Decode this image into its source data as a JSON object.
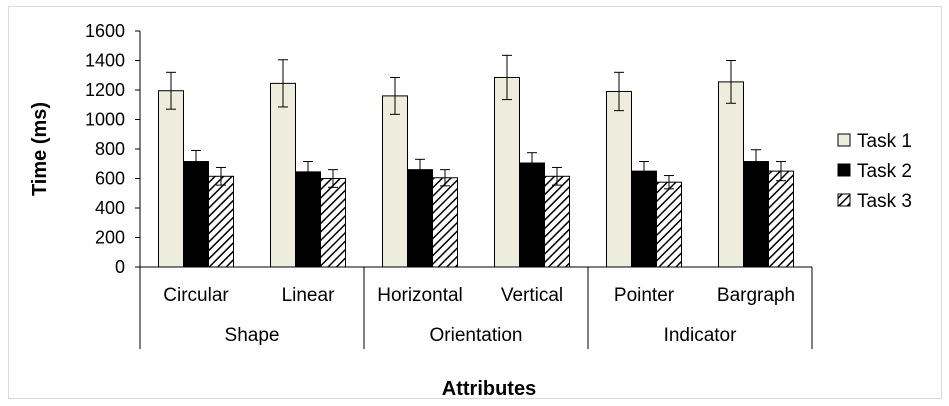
{
  "chart_data": {
    "type": "bar",
    "xlabel": "Attributes",
    "ylabel": "Time (ms)",
    "ylim": [
      0,
      1600
    ],
    "yticks": [
      "0",
      "200",
      "400",
      "600",
      "800",
      "1000",
      "1200",
      "1400",
      "1600"
    ],
    "groups": [
      {
        "label": "Shape",
        "categories": [
          "Circular",
          "Linear"
        ]
      },
      {
        "label": "Orientation",
        "categories": [
          "Horizontal",
          "Vertical"
        ]
      },
      {
        "label": "Indicator",
        "categories": [
          "Pointer",
          "Bargraph"
        ]
      }
    ],
    "categories": [
      "Circular",
      "Linear",
      "Horizontal",
      "Vertical",
      "Pointer",
      "Bargraph"
    ],
    "series": [
      {
        "name": "Task 1",
        "values": [
          1195,
          1245,
          1160,
          1285,
          1190,
          1255
        ],
        "errors": [
          125,
          160,
          125,
          150,
          130,
          145
        ],
        "fill": "#ededde",
        "pattern": "solid"
      },
      {
        "name": "Task 2",
        "values": [
          715,
          645,
          660,
          705,
          650,
          715
        ],
        "errors": [
          75,
          70,
          70,
          70,
          65,
          80
        ],
        "fill": "#000000",
        "pattern": "solid"
      },
      {
        "name": "Task 3",
        "values": [
          615,
          600,
          605,
          615,
          575,
          650
        ],
        "errors": [
          60,
          60,
          55,
          60,
          45,
          65
        ],
        "fill": "#ffffff",
        "pattern": "hatch"
      }
    ],
    "legend_position": "right",
    "grid": false
  }
}
